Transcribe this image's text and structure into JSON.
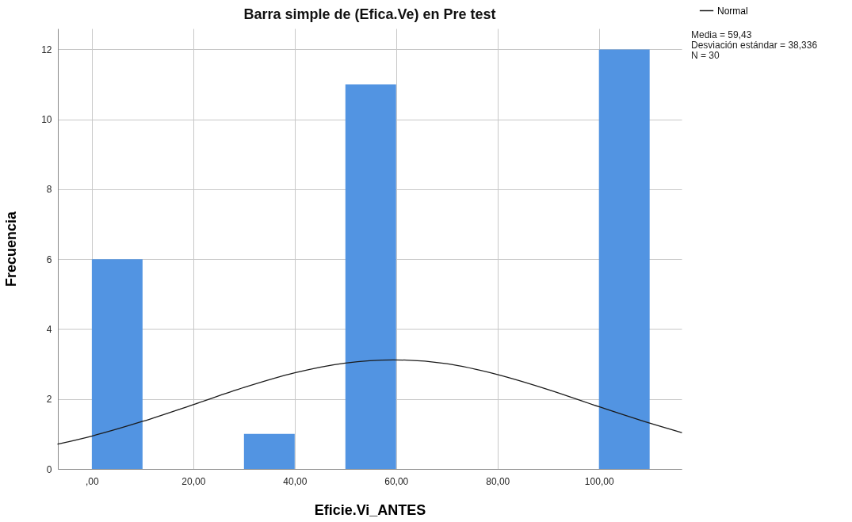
{
  "chart_data": {
    "type": "histogram",
    "title": "Barra simple de (Efica.Ve) en Pre test",
    "xlabel": "Eficie.Vi_ANTES",
    "ylabel": "Frecuencia",
    "bins": [
      0,
      10,
      20,
      30,
      40,
      50,
      60,
      70,
      80,
      90,
      100,
      110
    ],
    "values": [
      6,
      0,
      0,
      1,
      0,
      11,
      0,
      0,
      0,
      0,
      12
    ],
    "color": "#5294e2",
    "series": [
      {
        "name": "Normal",
        "type": "line",
        "color": "#1a1a1a",
        "x": [
          -6.7,
          0,
          10,
          20,
          30,
          40,
          50,
          59.43,
          70,
          80,
          90,
          100,
          110,
          116.3
        ],
        "values": [
          0.71,
          0.94,
          1.36,
          1.84,
          2.33,
          2.75,
          3.03,
          3.12,
          3.01,
          2.7,
          2.27,
          1.78,
          1.31,
          1.04
        ]
      }
    ],
    "xlim": [
      -6.7,
      116.3
    ],
    "xticks": [
      {
        "value": 0,
        "label": ",00"
      },
      {
        "value": 20,
        "label": "20,00"
      },
      {
        "value": 40,
        "label": "40,00"
      },
      {
        "value": 60,
        "label": "60,00"
      },
      {
        "value": 80,
        "label": "80,00"
      },
      {
        "value": 100,
        "label": "100,00"
      }
    ],
    "ylim": [
      0,
      12.6
    ],
    "yticks": [
      0,
      2,
      4,
      6,
      8,
      10,
      12
    ],
    "grid": true,
    "legend": "top right",
    "annotations": [
      "Media = 59,43",
      "Desviación estándar = 38,336",
      "N = 30"
    ]
  }
}
